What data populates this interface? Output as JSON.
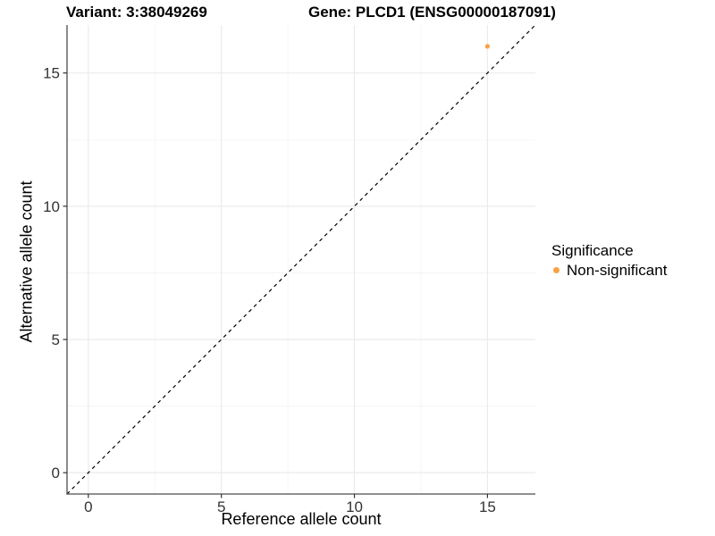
{
  "chart_data": {
    "type": "scatter",
    "title_left": "Variant: 3:38049269",
    "title_right": "Gene: PLCD1 (ENSG00000187091)",
    "xlabel": "Reference allele count",
    "ylabel": "Alternative allele count",
    "xlim": [
      -0.8,
      16.8
    ],
    "ylim": [
      -0.8,
      16.8
    ],
    "xticks": [
      0,
      5,
      10,
      15
    ],
    "yticks": [
      0,
      5,
      10,
      15
    ],
    "minor_xticks": [
      2.5,
      7.5,
      12.5
    ],
    "minor_yticks": [
      2.5,
      7.5,
      12.5
    ],
    "grid": "major+minor",
    "reference_line": {
      "kind": "identity",
      "slope": 1,
      "intercept": 0,
      "linetype": "dashed",
      "color": "#000000"
    },
    "series": [
      {
        "name": "Non-significant",
        "color": "#F9A242",
        "points": [
          {
            "x": 15,
            "y": 16
          }
        ]
      }
    ],
    "legend": {
      "title": "Significance",
      "position": "right",
      "entries": [
        {
          "label": "Non-significant",
          "color": "#F9A242"
        }
      ]
    },
    "colors": {
      "grid_major": "#EBEBEB",
      "grid_minor": "#F3F3F3",
      "axis_line": "#4D4D4D",
      "tick_text": "#333333",
      "background": "#FFFFFF"
    }
  }
}
